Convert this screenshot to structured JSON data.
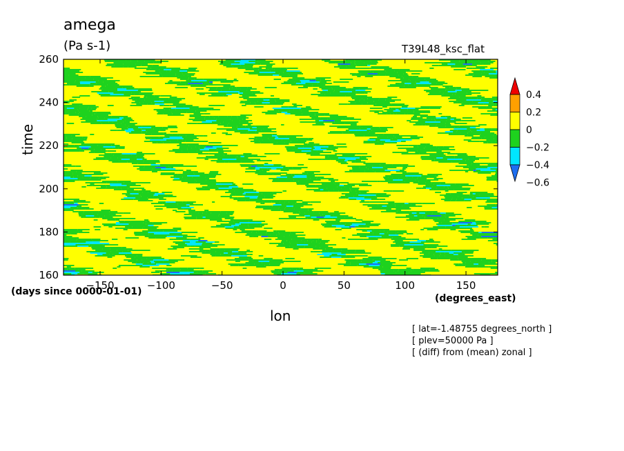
{
  "title": "amega",
  "units": "(Pa s-1)",
  "experiment": "T39L48_ksc_flat",
  "annotations": [
    "[ lat=-1.48755 degrees_north ]",
    "[ plev=50000 Pa ]",
    "[ (diff) from (mean) zonal ]"
  ],
  "chart_data": {
    "type": "heatmap",
    "title": "amega",
    "xlabel": "lon",
    "ylabel": "time",
    "x_units": "(degrees_east)",
    "y_units": "(days since 0000-01-01)",
    "xlim": [
      -180,
      176
    ],
    "ylim": [
      160,
      260
    ],
    "x_ticks": [
      -150,
      -100,
      -50,
      0,
      50,
      100,
      150
    ],
    "y_ticks": [
      160,
      180,
      200,
      220,
      240,
      260
    ],
    "x_tick_labels": [
      "-150",
      "-100",
      "-50",
      "0",
      "50",
      "100",
      "150"
    ],
    "y_tick_labels": [
      "160",
      "180",
      "200",
      "220",
      "240",
      "260"
    ],
    "colorbar": {
      "levels": [
        -0.6,
        -0.4,
        -0.2,
        0,
        0.2,
        0.4
      ],
      "labels": [
        "0.4",
        "0.2",
        "0",
        "-0.2",
        "-0.4",
        "-0.6"
      ],
      "colors": [
        "#1e6ef0",
        "#00e6ff",
        "#1ed21e",
        "#ffff00",
        "#ffa000",
        "#f00000"
      ],
      "extend": "both"
    },
    "pattern": "dominant 0 to 0.2 (yellow) and -0.2 to 0 (green) bands tilting downward to the east (westward propagation), with scattered -0.4 to -0.2 cyan patches"
  }
}
